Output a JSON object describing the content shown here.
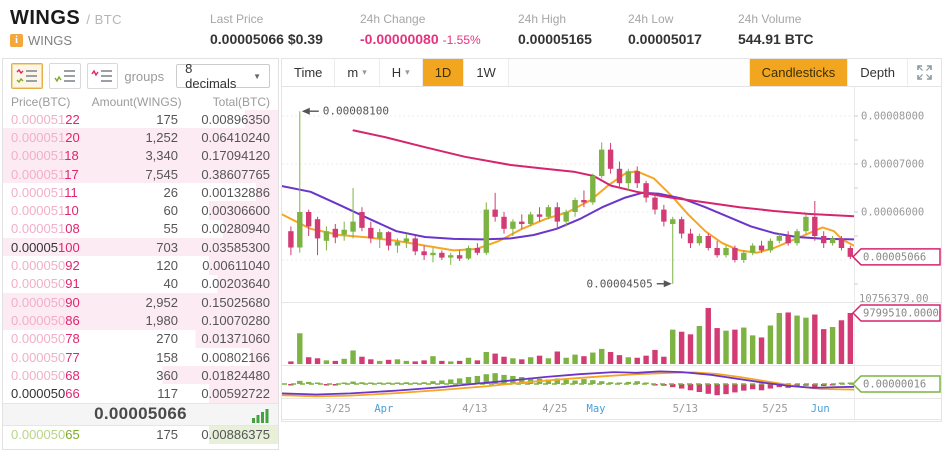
{
  "header": {
    "pair_base": "WINGS",
    "pair_quote": "/ BTC",
    "pair_sub": "WINGS",
    "stats": [
      {
        "label": "Last Price",
        "value": "0.00005066 $0.39",
        "type": "dark"
      },
      {
        "label": "24h Change",
        "value": "-0.00000080",
        "extra": "-1.55%",
        "type": "down"
      },
      {
        "label": "24h High",
        "value": "0.00005165",
        "type": "dark"
      },
      {
        "label": "24h Low",
        "value": "0.00005017",
        "type": "dark"
      },
      {
        "label": "24h Volume",
        "value": "544.91 BTC",
        "type": "dark"
      }
    ]
  },
  "orderbook": {
    "groups_label": "groups",
    "decimals_value": "8 decimals",
    "dropdown_arrow": "▼",
    "columns": [
      "Price(BTC)",
      "Amount(WINGS)",
      "Total(BTC)"
    ],
    "asks": [
      {
        "price_head": "0.000051",
        "price_tail": "22",
        "amount": "175",
        "total": "0.00896350",
        "bar": 12,
        "emph": false
      },
      {
        "price_head": "0.000051",
        "price_tail": "20",
        "amount": "1,252",
        "total": "0.06410240",
        "bar": 100,
        "emph": false
      },
      {
        "price_head": "0.000051",
        "price_tail": "18",
        "amount": "3,340",
        "total": "0.17094120",
        "bar": 100,
        "emph": false
      },
      {
        "price_head": "0.000051",
        "price_tail": "17",
        "amount": "7,545",
        "total": "0.38607765",
        "bar": 100,
        "emph": false
      },
      {
        "price_head": "0.000051",
        "price_tail": "11",
        "amount": "26",
        "total": "0.00132886",
        "bar": 8,
        "emph": false
      },
      {
        "price_head": "0.000051",
        "price_tail": "10",
        "amount": "60",
        "total": "0.00306600",
        "bar": 25,
        "emph": false
      },
      {
        "price_head": "0.000051",
        "price_tail": "08",
        "amount": "55",
        "total": "0.00280940",
        "bar": 20,
        "emph": false
      },
      {
        "price_head": "0.00005",
        "price_tail": "100",
        "amount": "703",
        "total": "0.03585300",
        "bar": 100,
        "emph": true
      },
      {
        "price_head": "0.000050",
        "price_tail": "92",
        "amount": "120",
        "total": "0.00611040",
        "bar": 25,
        "emph": false
      },
      {
        "price_head": "0.000050",
        "price_tail": "91",
        "amount": "40",
        "total": "0.00203640",
        "bar": 22,
        "emph": false
      },
      {
        "price_head": "0.000050",
        "price_tail": "90",
        "amount": "2,952",
        "total": "0.15025680",
        "bar": 100,
        "emph": false
      },
      {
        "price_head": "0.000050",
        "price_tail": "86",
        "amount": "1,980",
        "total": "0.10070280",
        "bar": 100,
        "emph": false
      },
      {
        "price_head": "0.000050",
        "price_tail": "78",
        "amount": "270",
        "total": "0.01371060",
        "bar": 30,
        "emph": false
      },
      {
        "price_head": "0.000050",
        "price_tail": "77",
        "amount": "158",
        "total": "0.00802166",
        "bar": 10,
        "emph": false
      },
      {
        "price_head": "0.000050",
        "price_tail": "68",
        "amount": "360",
        "total": "0.01824480",
        "bar": 42,
        "emph": false
      },
      {
        "price_head": "0.000050",
        "price_tail": "66",
        "amount": "117",
        "total": "0.00592722",
        "bar": 25,
        "emph": true
      }
    ],
    "last_price": "0.00005066",
    "partial_bid": {
      "price_head": "0.000050",
      "price_tail": "65",
      "amount": "175",
      "total": "0.00886375",
      "bar": 25
    }
  },
  "chart": {
    "toolbar": {
      "time": "Time",
      "m": "m",
      "h": "H",
      "d1": "1D",
      "w1": "1W",
      "candlesticks": "Candlesticks",
      "depth": "Depth",
      "selected_interval": "1D",
      "selected_mode": "Candlesticks",
      "arrow": "▾"
    }
  },
  "icons": {
    "coin-info-icon": "i",
    "orderbook-both-icon": "ask+bid book view",
    "orderbook-bids-icon": "bid book view",
    "orderbook-asks-icon": "ask book view",
    "depth-mini-bars-icon": "green volume bars",
    "expand-icon": "fullscreen arrows"
  },
  "colors": {
    "up": "#7cb342",
    "down": "#d23b74",
    "ma_pink": "#d5256e",
    "ma_purple": "#6b35c9",
    "ma_yellow": "#f5a623",
    "accent": "#f2a51f",
    "axis_text": "#999999",
    "grid": "#e0e0e0",
    "tag_down": "#d5256e",
    "tag_up": "#7cb342",
    "month_label": "#4a9fd8"
  },
  "chart_data": {
    "type": "candlestick",
    "title": "WINGS/BTC 1D candlestick chart with volume and MACD",
    "price_unit": "1e-8 BTC",
    "price_axis": {
      "tick_labels": [
        "0.00008000",
        "0.00007000",
        "0.00006000"
      ],
      "tick_values": [
        8000,
        7000,
        6000
      ],
      "current_price_tag": "0.00005066",
      "current_price": 5066
    },
    "volume_axis": {
      "max_label": "10756379.00",
      "max": 10756379,
      "current_tag": "9799510.0000",
      "current": 9799510
    },
    "indicator_axis": {
      "current_tag": "0.00000016"
    },
    "annotations": [
      {
        "text": "0.00008100",
        "value": 8100,
        "candle": 1,
        "dir": "left"
      },
      {
        "text": "0.00004505",
        "value": 4505,
        "candle": 43,
        "dir": "right"
      }
    ],
    "x_labels": [
      {
        "text": "3/25",
        "f": 0.098,
        "month": false
      },
      {
        "text": "Apr",
        "f": 0.178,
        "month": true
      },
      {
        "text": "4/13",
        "f": 0.337,
        "month": false
      },
      {
        "text": "4/25",
        "f": 0.477,
        "month": false
      },
      {
        "text": "May",
        "f": 0.549,
        "month": true
      },
      {
        "text": "5/13",
        "f": 0.705,
        "month": false
      },
      {
        "text": "5/25",
        "f": 0.862,
        "month": false
      },
      {
        "text": "Jun",
        "f": 0.941,
        "month": true
      }
    ],
    "candles": [
      [
        5600,
        5700,
        5100,
        5260
      ],
      [
        5260,
        8100,
        5150,
        6000
      ],
      [
        6000,
        6050,
        5500,
        5700
      ],
      [
        5850,
        5900,
        5100,
        5450
      ],
      [
        5400,
        5700,
        5200,
        5600
      ],
      [
        5650,
        5750,
        5350,
        5470
      ],
      [
        5530,
        5800,
        5400,
        5630
      ],
      [
        5590,
        6500,
        5450,
        5800
      ],
      [
        6000,
        6100,
        5600,
        5670
      ],
      [
        5670,
        5800,
        5350,
        5450
      ],
      [
        5450,
        5650,
        5250,
        5580
      ],
      [
        5580,
        5600,
        5200,
        5300
      ],
      [
        5300,
        5450,
        5150,
        5380
      ],
      [
        5380,
        5550,
        5250,
        5450
      ],
      [
        5450,
        5500,
        5100,
        5180
      ],
      [
        5180,
        5300,
        5000,
        5100
      ],
      [
        5100,
        5250,
        4950,
        5150
      ],
      [
        5150,
        5200,
        5000,
        5050
      ],
      [
        5050,
        5150,
        4900,
        5100
      ],
      [
        5100,
        5200,
        4980,
        5030
      ],
      [
        5030,
        5300,
        5000,
        5250
      ],
      [
        5250,
        5350,
        5100,
        5150
      ],
      [
        5150,
        6200,
        5100,
        6050
      ],
      [
        6050,
        6400,
        5800,
        5900
      ],
      [
        5900,
        6000,
        5550,
        5650
      ],
      [
        5650,
        5850,
        5500,
        5800
      ],
      [
        5800,
        5950,
        5650,
        5750
      ],
      [
        5750,
        6000,
        5700,
        5950
      ],
      [
        5950,
        6100,
        5800,
        5900
      ],
      [
        5900,
        6150,
        5850,
        6100
      ],
      [
        6100,
        6200,
        5650,
        5800
      ],
      [
        5800,
        6050,
        5700,
        6000
      ],
      [
        6000,
        6300,
        5900,
        6250
      ],
      [
        6250,
        6450,
        6100,
        6200
      ],
      [
        6200,
        6800,
        6150,
        6750
      ],
      [
        6750,
        7450,
        6700,
        7300
      ],
      [
        7300,
        7440,
        6800,
        6900
      ],
      [
        6900,
        7050,
        6500,
        6600
      ],
      [
        6600,
        6900,
        6450,
        6850
      ],
      [
        6850,
        6950,
        6500,
        6600
      ],
      [
        6600,
        6650,
        6200,
        6300
      ],
      [
        6300,
        6400,
        5950,
        6050
      ],
      [
        6050,
        6150,
        5700,
        5800
      ],
      [
        5750,
        5900,
        4505,
        5850
      ],
      [
        5850,
        5900,
        5450,
        5550
      ],
      [
        5550,
        5650,
        5250,
        5350
      ],
      [
        5350,
        5550,
        5300,
        5500
      ],
      [
        5500,
        5550,
        5200,
        5250
      ],
      [
        5250,
        5400,
        5050,
        5100
      ],
      [
        5100,
        5300,
        5050,
        5250
      ],
      [
        5250,
        5300,
        4950,
        5000
      ],
      [
        5000,
        5200,
        4940,
        5150
      ],
      [
        5150,
        5350,
        5100,
        5300
      ],
      [
        5300,
        5400,
        5150,
        5200
      ],
      [
        5200,
        5450,
        5150,
        5400
      ],
      [
        5400,
        5550,
        5350,
        5500
      ],
      [
        5500,
        5600,
        5300,
        5350
      ],
      [
        5350,
        5650,
        5300,
        5600
      ],
      [
        5600,
        5950,
        5550,
        5900
      ],
      [
        5900,
        6230,
        5400,
        5500
      ],
      [
        5500,
        5600,
        5250,
        5350
      ],
      [
        5350,
        5500,
        5300,
        5450
      ],
      [
        5450,
        5500,
        5200,
        5250
      ],
      [
        5250,
        5300,
        5020,
        5066
      ]
    ],
    "volumes": [
      500000,
      5900000,
      1300000,
      1100000,
      700000,
      600000,
      1000000,
      2600000,
      1400000,
      900000,
      600000,
      800000,
      900000,
      600000,
      500000,
      700000,
      1500000,
      600000,
      500000,
      600000,
      1200000,
      700000,
      2300000,
      2000000,
      1400000,
      1100000,
      900000,
      1300000,
      1600000,
      1100000,
      2400000,
      1200000,
      1800000,
      1500000,
      2200000,
      2900000,
      2300000,
      1700000,
      1300000,
      1200000,
      1600000,
      2700000,
      1400000,
      6600000,
      6200000,
      5700000,
      7300000,
      10756379,
      6900000,
      6400000,
      6600000,
      7000000,
      5500000,
      5100000,
      7400000,
      9800000,
      9900000,
      9300000,
      8900000,
      9500000,
      6700000,
      7100000,
      8400000,
      9799510
    ],
    "macd_hist": [
      -0.4,
      0.9,
      0.6,
      0.3,
      -0.3,
      -0.4,
      0.4,
      0.7,
      0.5,
      0.3,
      0.4,
      0.3,
      0.4,
      0.5,
      0.4,
      0.5,
      0.8,
      1.0,
      1.3,
      1.6,
      2.0,
      2.3,
      2.8,
      3.1,
      2.6,
      2.3,
      2.0,
      1.8,
      1.5,
      1.3,
      1.6,
      1.2,
      1.0,
      1.4,
      1.1,
      0.8,
      0.5,
      0.3,
      0.6,
      0.8,
      0.4,
      -0.3,
      -0.5,
      -0.9,
      -1.3,
      -1.8,
      -2.3,
      -2.8,
      -3.2,
      -2.9,
      -2.4,
      -1.9,
      -1.5,
      -1.8,
      -1.3,
      -0.9,
      -1.1,
      -0.8,
      -0.5,
      -0.9,
      -0.6,
      -0.3,
      0.3,
      0.4
    ],
    "ma_lines": {
      "pink": [
        [
          0.125,
          7700
        ],
        [
          0.18,
          7560
        ],
        [
          0.25,
          7350
        ],
        [
          0.32,
          7150
        ],
        [
          0.4,
          6980
        ],
        [
          0.46,
          6900
        ],
        [
          0.51,
          6840
        ],
        [
          0.545,
          6750
        ],
        [
          0.575,
          6550
        ],
        [
          0.62,
          6420
        ],
        [
          0.68,
          6300
        ],
        [
          0.74,
          6200
        ],
        [
          0.8,
          6100
        ],
        [
          0.86,
          6020
        ],
        [
          0.92,
          5960
        ],
        [
          1,
          5910
        ]
      ],
      "purple": [
        [
          0,
          6540
        ],
        [
          0.05,
          6420
        ],
        [
          0.1,
          6150
        ],
        [
          0.15,
          5870
        ],
        [
          0.2,
          5600
        ],
        [
          0.25,
          5480
        ],
        [
          0.3,
          5440
        ],
        [
          0.35,
          5430
        ],
        [
          0.4,
          5450
        ],
        [
          0.44,
          5520
        ],
        [
          0.48,
          5650
        ],
        [
          0.52,
          5850
        ],
        [
          0.56,
          6100
        ],
        [
          0.6,
          6300
        ],
        [
          0.63,
          6400
        ],
        [
          0.66,
          6380
        ],
        [
          0.7,
          6280
        ],
        [
          0.74,
          6100
        ],
        [
          0.78,
          5900
        ],
        [
          0.82,
          5700
        ],
        [
          0.86,
          5560
        ],
        [
          0.9,
          5480
        ],
        [
          0.95,
          5440
        ],
        [
          1,
          5430
        ]
      ],
      "yellow": [
        [
          0,
          5950
        ],
        [
          0.05,
          5650
        ],
        [
          0.1,
          5520
        ],
        [
          0.15,
          5470
        ],
        [
          0.2,
          5400
        ],
        [
          0.25,
          5300
        ],
        [
          0.3,
          5200
        ],
        [
          0.34,
          5230
        ],
        [
          0.38,
          5400
        ],
        [
          0.42,
          5650
        ],
        [
          0.46,
          5850
        ],
        [
          0.5,
          6000
        ],
        [
          0.54,
          6250
        ],
        [
          0.57,
          6550
        ],
        [
          0.6,
          6800
        ],
        [
          0.62,
          6850
        ],
        [
          0.65,
          6700
        ],
        [
          0.68,
          6350
        ],
        [
          0.71,
          5950
        ],
        [
          0.74,
          5600
        ],
        [
          0.77,
          5350
        ],
        [
          0.8,
          5200
        ],
        [
          0.83,
          5150
        ],
        [
          0.86,
          5250
        ],
        [
          0.89,
          5400
        ],
        [
          0.92,
          5550
        ],
        [
          0.945,
          5680
        ],
        [
          0.965,
          5600
        ],
        [
          0.98,
          5420
        ],
        [
          1,
          5300
        ]
      ]
    },
    "macd_lines": {
      "yellow": [
        [
          0,
          -3.2
        ],
        [
          0.06,
          -3.5
        ],
        [
          0.12,
          -3.3
        ],
        [
          0.2,
          -2.6
        ],
        [
          0.28,
          -1.7
        ],
        [
          0.36,
          -0.6
        ],
        [
          0.44,
          0.7
        ],
        [
          0.5,
          1.5
        ],
        [
          0.56,
          2.2
        ],
        [
          0.62,
          2.8
        ],
        [
          0.68,
          3.2
        ],
        [
          0.72,
          3.3
        ],
        [
          0.76,
          2.9
        ],
        [
          0.8,
          2.0
        ],
        [
          0.85,
          0.7
        ],
        [
          0.9,
          -0.7
        ],
        [
          0.94,
          -1.4
        ],
        [
          1,
          -1.6
        ]
      ],
      "purple": [
        [
          0,
          -2.7
        ],
        [
          0.06,
          -3.0
        ],
        [
          0.12,
          -2.7
        ],
        [
          0.2,
          -1.9
        ],
        [
          0.28,
          -0.9
        ],
        [
          0.34,
          0.1
        ],
        [
          0.4,
          1.0
        ],
        [
          0.46,
          2.0
        ],
        [
          0.52,
          2.8
        ],
        [
          0.58,
          3.4
        ],
        [
          0.62,
          3.2
        ],
        [
          0.66,
          3.6
        ],
        [
          0.7,
          3.4
        ],
        [
          0.75,
          2.6
        ],
        [
          0.8,
          1.4
        ],
        [
          0.85,
          0.2
        ],
        [
          0.89,
          -0.6
        ],
        [
          0.93,
          -1.1
        ],
        [
          0.97,
          -0.9
        ],
        [
          1,
          -0.8
        ]
      ]
    },
    "grid": true,
    "legend": false
  }
}
